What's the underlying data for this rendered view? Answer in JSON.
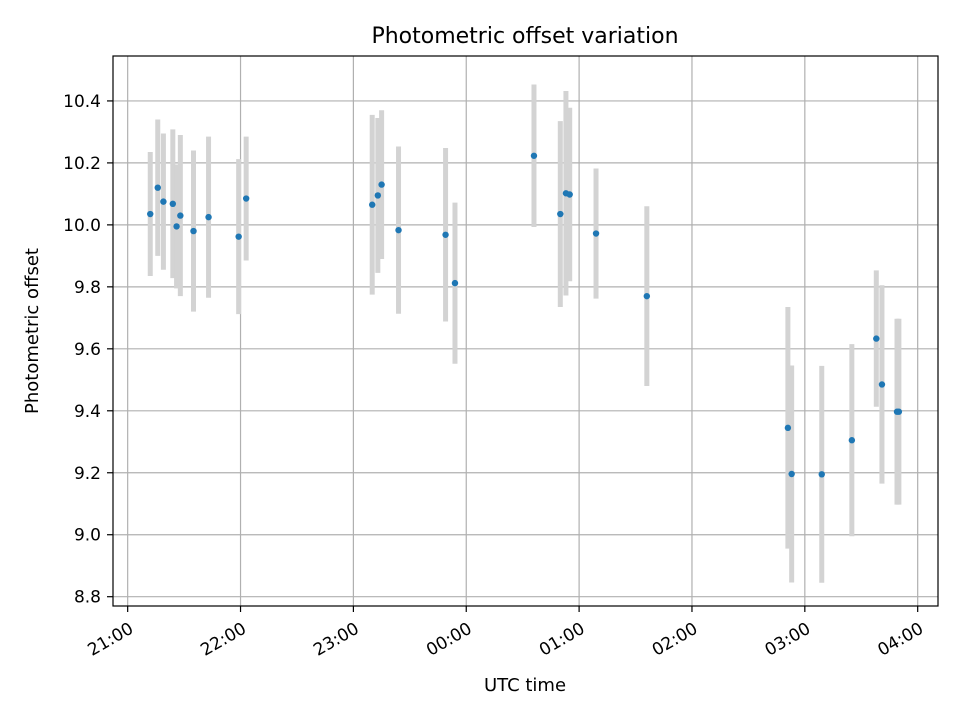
{
  "chart_data": {
    "type": "scatter",
    "title": "Photometric offset variation",
    "xlabel": "UTC time",
    "ylabel": "Photometric offset",
    "xlim_hours": [
      20.87,
      28.18
    ],
    "ylim": [
      8.77,
      10.545
    ],
    "grid": true,
    "x_ticks": [
      {
        "h": 21,
        "label": "21:00"
      },
      {
        "h": 22,
        "label": "22:00"
      },
      {
        "h": 23,
        "label": "23:00"
      },
      {
        "h": 24,
        "label": "00:00"
      },
      {
        "h": 25,
        "label": "01:00"
      },
      {
        "h": 26,
        "label": "02:00"
      },
      {
        "h": 27,
        "label": "03:00"
      },
      {
        "h": 28,
        "label": "04:00"
      }
    ],
    "y_ticks": [
      {
        "v": 8.8,
        "label": "8.8"
      },
      {
        "v": 9.0,
        "label": "9.0"
      },
      {
        "v": 9.2,
        "label": "9.2"
      },
      {
        "v": 9.4,
        "label": "9.4"
      },
      {
        "v": 9.6,
        "label": "9.6"
      },
      {
        "v": 9.8,
        "label": "9.8"
      },
      {
        "v": 10.0,
        "label": "10.0"
      },
      {
        "v": 10.2,
        "label": "10.2"
      },
      {
        "v": 10.4,
        "label": "10.4"
      }
    ],
    "colors": {
      "marker": "#1f77b4",
      "errorbar": "#d3d3d3",
      "grid": "#b0b0b0"
    },
    "points": [
      {
        "t": "21:12",
        "y": 10.035,
        "err": 0.2
      },
      {
        "t": "21:16",
        "y": 10.12,
        "err": 0.22
      },
      {
        "t": "21:19",
        "y": 10.075,
        "err": 0.22
      },
      {
        "t": "21:24",
        "y": 10.068,
        "err": 0.24
      },
      {
        "t": "21:26",
        "y": 9.995,
        "err": 0.2
      },
      {
        "t": "21:28",
        "y": 10.03,
        "err": 0.26
      },
      {
        "t": "21:35",
        "y": 9.98,
        "err": 0.26
      },
      {
        "t": "21:43",
        "y": 10.025,
        "err": 0.26
      },
      {
        "t": "21:59",
        "y": 9.962,
        "err": 0.25
      },
      {
        "t": "22:03",
        "y": 10.085,
        "err": 0.2
      },
      {
        "t": "23:10",
        "y": 10.065,
        "err": 0.29
      },
      {
        "t": "23:13",
        "y": 10.095,
        "err": 0.25
      },
      {
        "t": "23:15",
        "y": 10.13,
        "err": 0.24
      },
      {
        "t": "23:24",
        "y": 9.983,
        "err": 0.27
      },
      {
        "t": "23:49",
        "y": 9.968,
        "err": 0.28
      },
      {
        "t": "23:54",
        "y": 9.812,
        "err": 0.26
      },
      {
        "t": "00:36",
        "y": 10.223,
        "err": 0.23
      },
      {
        "t": "00:50",
        "y": 10.035,
        "err": 0.3
      },
      {
        "t": "00:53",
        "y": 10.102,
        "err": 0.33
      },
      {
        "t": "00:55",
        "y": 10.098,
        "err": 0.28
      },
      {
        "t": "01:09",
        "y": 9.972,
        "err": 0.21
      },
      {
        "t": "01:36",
        "y": 9.77,
        "err": 0.29
      },
      {
        "t": "02:51",
        "y": 9.345,
        "err": 0.39
      },
      {
        "t": "02:53",
        "y": 9.196,
        "err": 0.35
      },
      {
        "t": "03:09",
        "y": 9.195,
        "err": 0.35
      },
      {
        "t": "03:25",
        "y": 9.305,
        "err": 0.31
      },
      {
        "t": "03:38",
        "y": 9.633,
        "err": 0.22
      },
      {
        "t": "03:41",
        "y": 9.485,
        "err": 0.32
      },
      {
        "t": "03:49",
        "y": 9.397,
        "err": 0.3
      },
      {
        "t": "03:50",
        "y": 9.397,
        "err": 0.3
      }
    ]
  }
}
